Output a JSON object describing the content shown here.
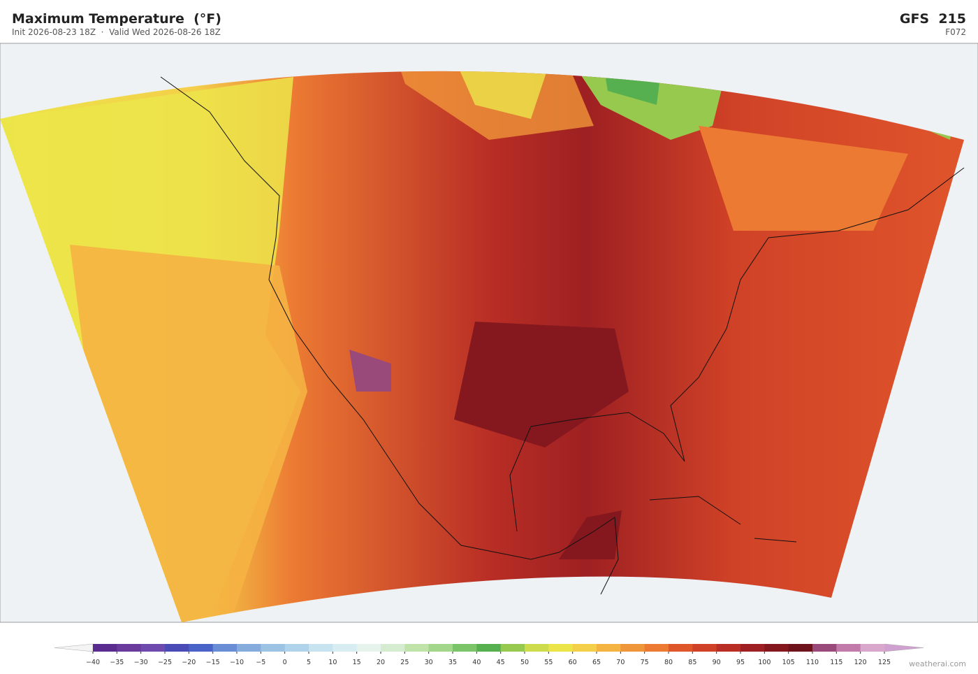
{
  "header": {
    "title": "Maximum Temperature  (°F)",
    "subtitle": "Init 2026-08-23 18Z  ·  Valid Wed 2026-08-26 18Z",
    "model": "GFS  215",
    "forecast_hour": "F072"
  },
  "colorbar": {
    "ticks": [
      {
        "value": -40,
        "label": "−40"
      },
      {
        "value": -35,
        "label": "−35"
      },
      {
        "value": -30,
        "label": "−30"
      },
      {
        "value": -25,
        "label": "−25"
      },
      {
        "value": -20,
        "label": "−20"
      },
      {
        "value": -15,
        "label": "−15"
      },
      {
        "value": -10,
        "label": "−10"
      },
      {
        "value": -5,
        "label": "−5"
      },
      0,
      5,
      10,
      15,
      20,
      25,
      30,
      35,
      40,
      45,
      50,
      55,
      60,
      65,
      70,
      75,
      80,
      85,
      90,
      95,
      100,
      105,
      110,
      115,
      120,
      125
    ],
    "colors": [
      "#5b2c8f",
      "#6a3a9c",
      "#6f4aae",
      "#4b4bb8",
      "#4a63c8",
      "#6a8ed6",
      "#86acdd",
      "#9cc3e4",
      "#afd3ea",
      "#c6e3ef",
      "#d8edf2",
      "#e6f3ec",
      "#d6ecd0",
      "#bfe3a8",
      "#a2d68a",
      "#7cc46a",
      "#57b050",
      "#98c94f",
      "#cddc4c",
      "#ece54a",
      "#f4cf4a",
      "#f5b342",
      "#f0963a",
      "#ec7a33",
      "#e0562b",
      "#d04227",
      "#b92e25",
      "#9e2022",
      "#84181e",
      "#6e121c",
      "#9a4a7a",
      "#c27aaa",
      "#d9a6cc"
    ],
    "under": "#f4f4f4",
    "over": "#cfa0d0"
  },
  "credit": "weatherai.com"
}
